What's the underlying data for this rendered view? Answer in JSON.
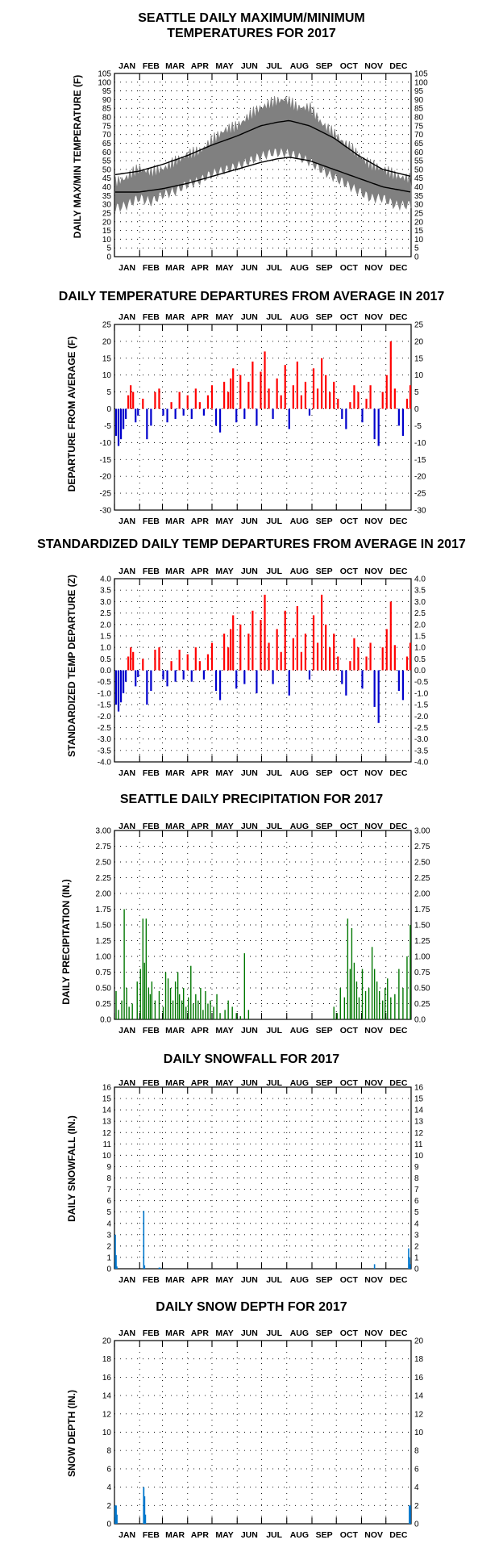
{
  "months": [
    "JAN",
    "FEB",
    "MAR",
    "APR",
    "MAY",
    "JUN",
    "JUL",
    "AUG",
    "SEP",
    "OCT",
    "NOV",
    "DEC"
  ],
  "colors": {
    "max_min_band": "#808080",
    "normals": "#000000",
    "positive": "#ff0000",
    "negative": "#0000cc",
    "precip": "#007700",
    "snow": "#0077cc"
  },
  "chart_data": [
    {
      "id": "temps",
      "type": "area",
      "title_lines": [
        "SEATTLE DAILY MAXIMUM/MINIMUM",
        "TEMPERATURES FOR 2017"
      ],
      "ylabel": "DAILY MAX/MIN TEMPERATURE (F)",
      "ylim": [
        0,
        105
      ],
      "yticks": [
        0,
        5,
        10,
        15,
        20,
        25,
        30,
        35,
        40,
        45,
        50,
        55,
        60,
        65,
        70,
        75,
        80,
        85,
        90,
        95,
        100,
        105
      ],
      "ytick_labels": [
        "0",
        "5",
        "10",
        "15",
        "20",
        "25",
        "30",
        "35",
        "40",
        "45",
        "50",
        "55",
        "60",
        "65",
        "70",
        "75",
        "80",
        "85",
        "90",
        "95",
        "100",
        "105"
      ],
      "grid": "dotted",
      "series": [
        {
          "kind": "daily_max_min_band",
          "x": [
            1,
            15,
            30,
            45,
            60,
            75,
            90,
            105,
            120,
            135,
            150,
            165,
            180,
            195,
            210,
            225,
            240,
            255,
            270,
            285,
            300,
            315,
            330,
            345,
            365
          ],
          "max": [
            42,
            45,
            50,
            48,
            50,
            54,
            58,
            60,
            66,
            72,
            74,
            80,
            85,
            88,
            90,
            85,
            85,
            76,
            70,
            64,
            58,
            52,
            50,
            46,
            44
          ],
          "min": [
            28,
            30,
            34,
            32,
            36,
            38,
            42,
            44,
            48,
            50,
            52,
            55,
            58,
            60,
            60,
            58,
            55,
            50,
            46,
            42,
            38,
            34,
            34,
            30,
            30
          ]
        },
        {
          "kind": "normal_high",
          "x": [
            1,
            30,
            60,
            90,
            120,
            150,
            180,
            200,
            215,
            240,
            270,
            300,
            330,
            365
          ],
          "values": [
            47,
            49,
            53,
            58,
            64,
            69,
            75,
            77,
            78,
            75,
            68,
            58,
            50,
            46
          ]
        },
        {
          "kind": "normal_low",
          "x": [
            1,
            30,
            60,
            90,
            120,
            150,
            180,
            200,
            215,
            240,
            270,
            300,
            330,
            365
          ],
          "values": [
            37,
            37,
            39,
            42,
            46,
            50,
            54,
            56,
            57,
            55,
            50,
            45,
            40,
            37
          ]
        }
      ]
    },
    {
      "id": "departures",
      "type": "bar",
      "title_lines": [
        "DAILY TEMPERATURE DEPARTURES FROM AVERAGE IN 2017"
      ],
      "ylabel": "DEPARTURE FROM AVERAGE (F)",
      "ylim": [
        -30,
        25
      ],
      "yticks": [
        -30,
        -25,
        -20,
        -15,
        -10,
        -5,
        0,
        5,
        10,
        15,
        20,
        25
      ],
      "ytick_labels": [
        "-30",
        "-25",
        "-20",
        "-15",
        "-10",
        "-5",
        "0",
        "5",
        "10",
        "15",
        "20",
        "25"
      ],
      "grid": "dotted",
      "series": [
        {
          "x": [
            2,
            5,
            8,
            11,
            14,
            17,
            20,
            23,
            26,
            29,
            35,
            40,
            45,
            50,
            55,
            60,
            65,
            70,
            75,
            80,
            85,
            90,
            95,
            100,
            105,
            110,
            115,
            120,
            125,
            130,
            135,
            140,
            143,
            146,
            150,
            155,
            160,
            165,
            170,
            175,
            180,
            185,
            190,
            195,
            200,
            205,
            210,
            215,
            220,
            225,
            230,
            235,
            240,
            245,
            250,
            255,
            260,
            265,
            270,
            275,
            280,
            285,
            290,
            295,
            300,
            305,
            310,
            315,
            320,
            325,
            330,
            335,
            340,
            345,
            350,
            355,
            360,
            364
          ],
          "values": [
            -8,
            -11,
            -9,
            -6,
            -3,
            4,
            7,
            5,
            -4,
            -2,
            3,
            -9,
            -5,
            5,
            6,
            -2,
            -4,
            2,
            -3,
            5,
            -2,
            4,
            -3,
            6,
            2,
            -2,
            4,
            7,
            -5,
            -7,
            8,
            5,
            9,
            12,
            -4,
            10,
            -3,
            8,
            14,
            -5,
            11,
            17,
            6,
            -3,
            9,
            4,
            13,
            -6,
            7,
            14,
            4,
            8,
            -2,
            12,
            6,
            15,
            10,
            5,
            8,
            3,
            -3,
            -6,
            2,
            7,
            5,
            -4,
            3,
            7,
            -9,
            -11,
            5,
            10,
            20,
            6,
            -5,
            -8,
            3,
            7
          ]
        }
      ]
    },
    {
      "id": "standardized",
      "type": "bar",
      "title_lines": [
        "STANDARDIZED DAILY TEMP DEPARTURES FROM AVERAGE IN 2017"
      ],
      "ylabel": "STANDARDIZED TEMP DEPARTURE (Z)",
      "ylim": [
        -4,
        4
      ],
      "yticks": [
        -4,
        -3.5,
        -3,
        -2.5,
        -2,
        -1.5,
        -1,
        -0.5,
        0,
        0.5,
        1,
        1.5,
        2,
        2.5,
        3,
        3.5,
        4
      ],
      "ytick_labels": [
        "-4.0",
        "-3.5",
        "-3.0",
        "-2.5",
        "-2.0",
        "-1.5",
        "-1.0",
        "-0.5",
        "0.0",
        "0.5",
        "1.0",
        "1.5",
        "2.0",
        "2.5",
        "3.0",
        "3.5",
        "4.0"
      ],
      "grid": "dotted",
      "series": [
        {
          "x": [
            2,
            5,
            8,
            11,
            14,
            17,
            20,
            23,
            26,
            29,
            35,
            40,
            45,
            50,
            55,
            60,
            65,
            70,
            75,
            80,
            85,
            90,
            95,
            100,
            105,
            110,
            115,
            120,
            125,
            130,
            135,
            140,
            143,
            146,
            150,
            155,
            160,
            165,
            170,
            175,
            180,
            185,
            190,
            195,
            200,
            205,
            210,
            215,
            220,
            225,
            230,
            235,
            240,
            245,
            250,
            255,
            260,
            265,
            270,
            275,
            280,
            285,
            290,
            295,
            300,
            305,
            310,
            315,
            320,
            325,
            330,
            335,
            340,
            345,
            350,
            355,
            360,
            364
          ],
          "values": [
            -1.5,
            -1.8,
            -1.4,
            -1.0,
            -0.5,
            0.6,
            1.0,
            0.8,
            -0.7,
            -0.3,
            0.5,
            -1.5,
            -0.9,
            0.9,
            1.0,
            -0.4,
            -0.7,
            0.4,
            -0.5,
            0.9,
            -0.4,
            0.7,
            -0.5,
            1.0,
            0.4,
            -0.4,
            0.7,
            1.2,
            -0.9,
            -1.3,
            1.6,
            1.0,
            1.8,
            2.4,
            -0.8,
            2.0,
            -0.6,
            1.6,
            2.6,
            -1.0,
            2.2,
            3.3,
            1.2,
            -0.6,
            1.8,
            0.8,
            2.6,
            -1.1,
            1.4,
            2.8,
            0.8,
            1.6,
            -0.4,
            2.4,
            1.2,
            3.3,
            2.0,
            1.0,
            1.6,
            0.6,
            -0.6,
            -1.1,
            0.4,
            1.4,
            1.0,
            -0.8,
            0.6,
            1.2,
            -1.6,
            -2.3,
            1.0,
            1.8,
            3.0,
            1.1,
            -0.9,
            -1.3,
            0.6,
            1.2
          ]
        }
      ]
    },
    {
      "id": "precip",
      "type": "bar",
      "title_lines": [
        "SEATTLE DAILY PRECIPITATION FOR 2017"
      ],
      "ylabel": "DAILY PRECIPITATION (IN.)",
      "ylim": [
        0,
        3
      ],
      "yticks": [
        0,
        0.25,
        0.5,
        0.75,
        1,
        1.25,
        1.5,
        1.75,
        2,
        2.25,
        2.5,
        2.75,
        3
      ],
      "ytick_labels": [
        "0.0",
        "0.25",
        "0.50",
        "0.75",
        "1.00",
        "1.25",
        "1.50",
        "1.75",
        "2.00",
        "2.25",
        "2.50",
        "2.75",
        "3.00"
      ],
      "grid": "dotted",
      "series": [
        {
          "x": [
            2,
            5,
            9,
            12,
            15,
            18,
            22,
            28,
            32,
            35,
            37,
            39,
            42,
            44,
            46,
            50,
            55,
            60,
            63,
            66,
            69,
            72,
            75,
            78,
            80,
            83,
            85,
            88,
            91,
            94,
            97,
            100,
            103,
            106,
            109,
            112,
            115,
            118,
            122,
            126,
            130,
            136,
            140,
            145,
            150,
            155,
            160,
            165,
            270,
            274,
            278,
            283,
            287,
            290,
            292,
            295,
            298,
            301,
            305,
            309,
            313,
            317,
            320,
            323,
            326,
            330,
            333,
            336,
            340,
            345,
            350,
            355,
            360,
            364
          ],
          "values": [
            0.45,
            0.15,
            0.3,
            1.75,
            0.5,
            0.2,
            0.25,
            0.6,
            0.8,
            1.6,
            0.9,
            1.6,
            0.5,
            0.4,
            0.6,
            0.3,
            0.45,
            0.2,
            0.75,
            0.65,
            0.5,
            0.3,
            0.6,
            0.75,
            0.4,
            0.3,
            0.5,
            0.2,
            0.35,
            0.85,
            0.25,
            0.4,
            0.3,
            0.5,
            0.15,
            0.45,
            0.25,
            0.3,
            0.2,
            0.4,
            0.1,
            0.15,
            0.3,
            0.2,
            0.1,
            0.05,
            1.05,
            0.15,
            0.2,
            0.1,
            0.5,
            0.35,
            1.6,
            0.8,
            1.45,
            0.9,
            0.6,
            0.35,
            0.8,
            0.45,
            0.5,
            1.15,
            0.8,
            0.6,
            0.45,
            0.3,
            0.5,
            0.65,
            0.35,
            0.4,
            0.8,
            0.5,
            1.0,
            1.5
          ]
        }
      ]
    },
    {
      "id": "snowfall",
      "type": "bar",
      "title_lines": [
        "DAILY SNOWFALL FOR 2017"
      ],
      "ylabel": "DAILY SNOWFALL (IN.)",
      "ylim": [
        0,
        16
      ],
      "yticks": [
        0,
        1,
        2,
        3,
        4,
        5,
        6,
        7,
        8,
        9,
        10,
        11,
        12,
        13,
        14,
        15,
        16
      ],
      "ytick_labels": [
        "0",
        "1",
        "2",
        "3",
        "4",
        "5",
        "6",
        "7",
        "8",
        "9",
        "10",
        "11",
        "12",
        "13",
        "14",
        "15",
        "16"
      ],
      "grid": "dotted",
      "series": [
        {
          "x": [
            1,
            2,
            3,
            36,
            37,
            55,
            56,
            320,
            362,
            363,
            364
          ],
          "values": [
            3.0,
            1.2,
            0.2,
            5.1,
            0.3,
            0.1,
            0.1,
            0.4,
            1.8,
            1.0,
            0.4
          ]
        }
      ]
    },
    {
      "id": "snowdepth",
      "type": "bar",
      "title_lines": [
        "DAILY SNOW DEPTH FOR 2017"
      ],
      "ylabel": "SNOW DEPTH (IN.)",
      "ylim": [
        0,
        20
      ],
      "yticks": [
        0,
        2,
        4,
        6,
        8,
        10,
        12,
        14,
        16,
        18,
        20
      ],
      "ytick_labels": [
        "0",
        "2",
        "4",
        "6",
        "8",
        "10",
        "12",
        "14",
        "16",
        "18",
        "20"
      ],
      "grid": "dotted",
      "series": [
        {
          "x": [
            1,
            2,
            3,
            36,
            37,
            38,
            363,
            364
          ],
          "values": [
            2,
            2,
            1,
            4,
            3,
            1,
            2,
            2
          ]
        }
      ]
    }
  ]
}
